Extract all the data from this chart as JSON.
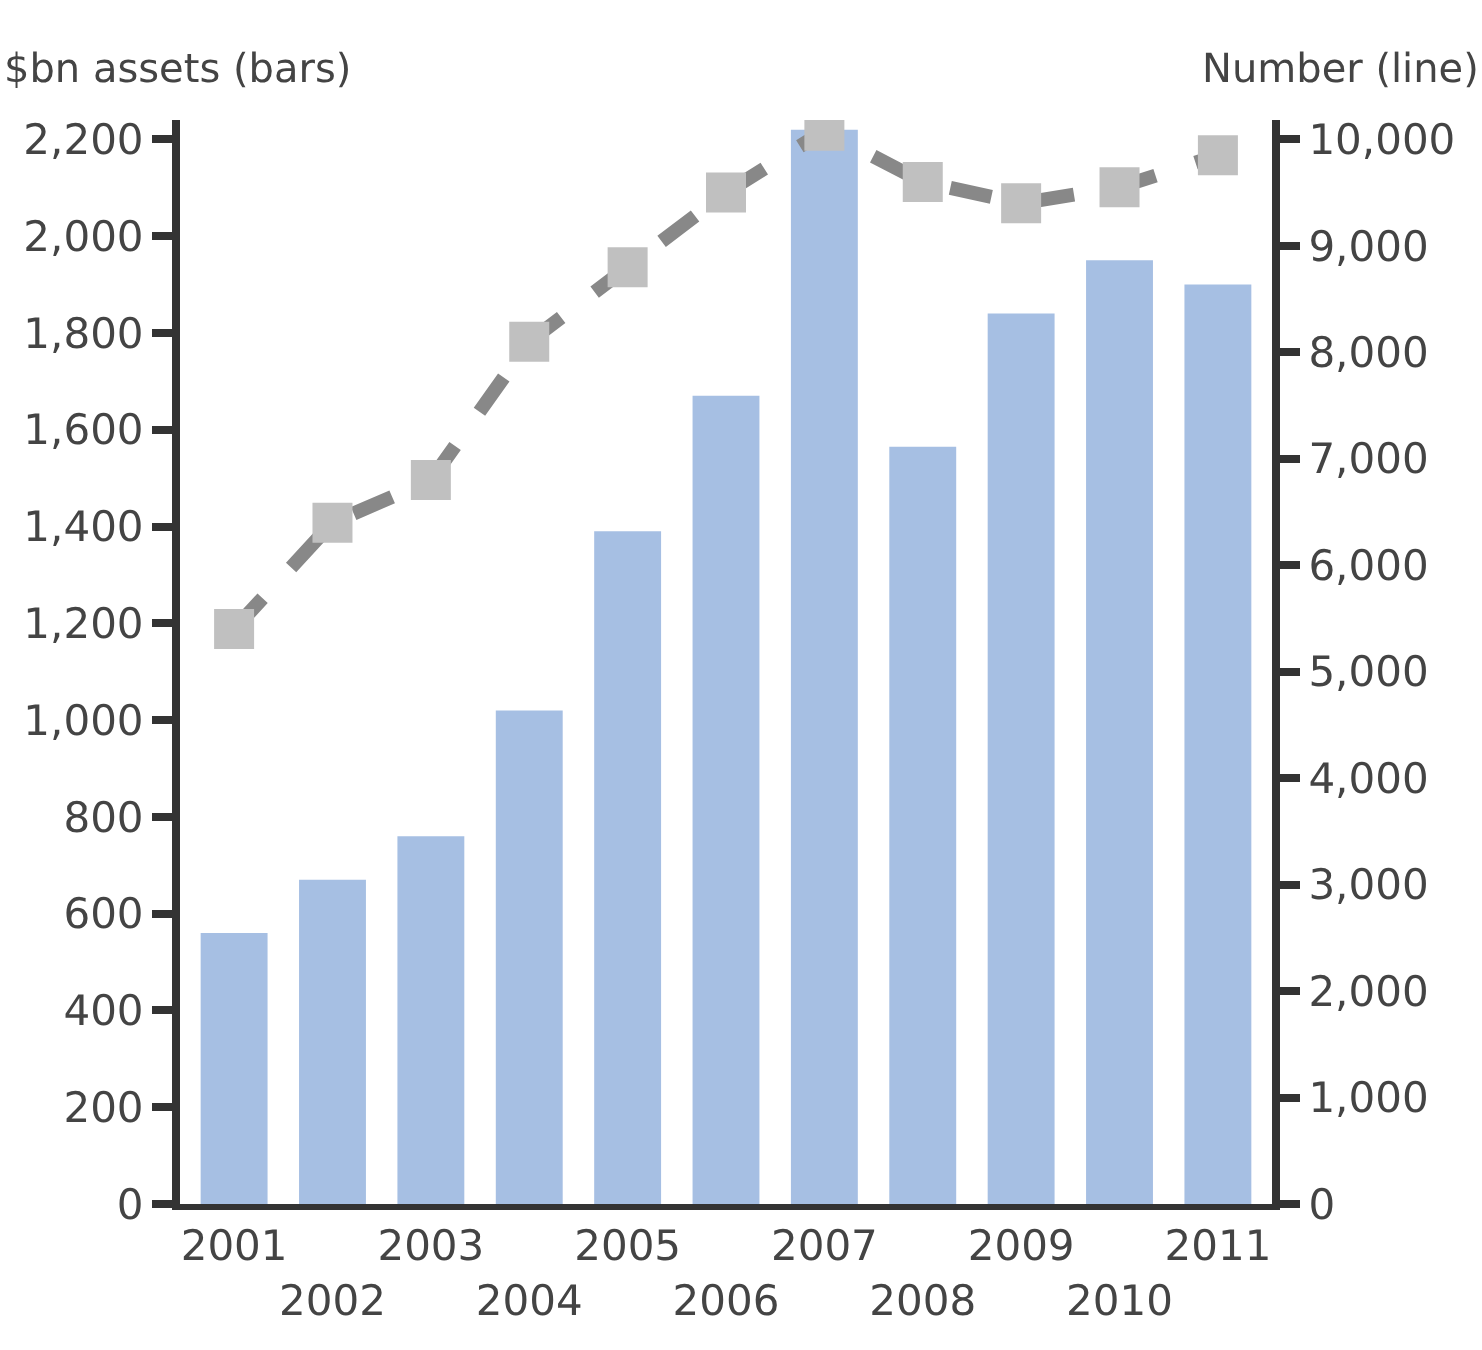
{
  "chart_data": {
    "type": "bar",
    "categories": [
      "2001",
      "2002",
      "2003",
      "2004",
      "2005",
      "2006",
      "2007",
      "2008",
      "2009",
      "2010",
      "2011"
    ],
    "ylabel": "$bn assets (bars)",
    "y2label": "Number (line)",
    "series": [
      {
        "color": "#a6bfe3",
        "values": [
          560,
          670,
          760,
          1020,
          1390,
          1670,
          2220,
          1565,
          1840,
          1950,
          1900
        ]
      },
      {
        "type": "line",
        "axis": "y2",
        "color": "#888888",
        "marker": "square",
        "line_style": "dashed",
        "values": [
          5400,
          6400,
          6800,
          8100,
          8800,
          9500,
          10080,
          9600,
          9400,
          9550,
          9850
        ]
      }
    ],
    "ylim": [
      0,
      2240
    ],
    "yticks": [
      {
        "value": 0,
        "label": "0"
      },
      {
        "value": 200,
        "label": "200"
      },
      {
        "value": 400,
        "label": "400"
      },
      {
        "value": 600,
        "label": "600"
      },
      {
        "value": 800,
        "label": "800"
      },
      {
        "value": 1000,
        "label": "1,000"
      },
      {
        "value": 1200,
        "label": "1,200"
      },
      {
        "value": 1400,
        "label": "1,400"
      },
      {
        "value": 1600,
        "label": "1,600"
      },
      {
        "value": 1800,
        "label": "1,800"
      },
      {
        "value": 2000,
        "label": "2,000"
      },
      {
        "value": 2200,
        "label": "2,200"
      }
    ],
    "y2lim": [
      0,
      10182
    ],
    "y2ticks": [
      {
        "value": 0,
        "label": "0"
      },
      {
        "value": 1000,
        "label": "1,000"
      },
      {
        "value": 2000,
        "label": "2,000"
      },
      {
        "value": 3000,
        "label": "3,000"
      },
      {
        "value": 4000,
        "label": "4,000"
      },
      {
        "value": 5000,
        "label": "5,000"
      },
      {
        "value": 6000,
        "label": "6,000"
      },
      {
        "value": 7000,
        "label": "7,000"
      },
      {
        "value": 8000,
        "label": "8,000"
      },
      {
        "value": 9000,
        "label": "9,000"
      },
      {
        "value": 10000,
        "label": "10,000"
      }
    ]
  }
}
